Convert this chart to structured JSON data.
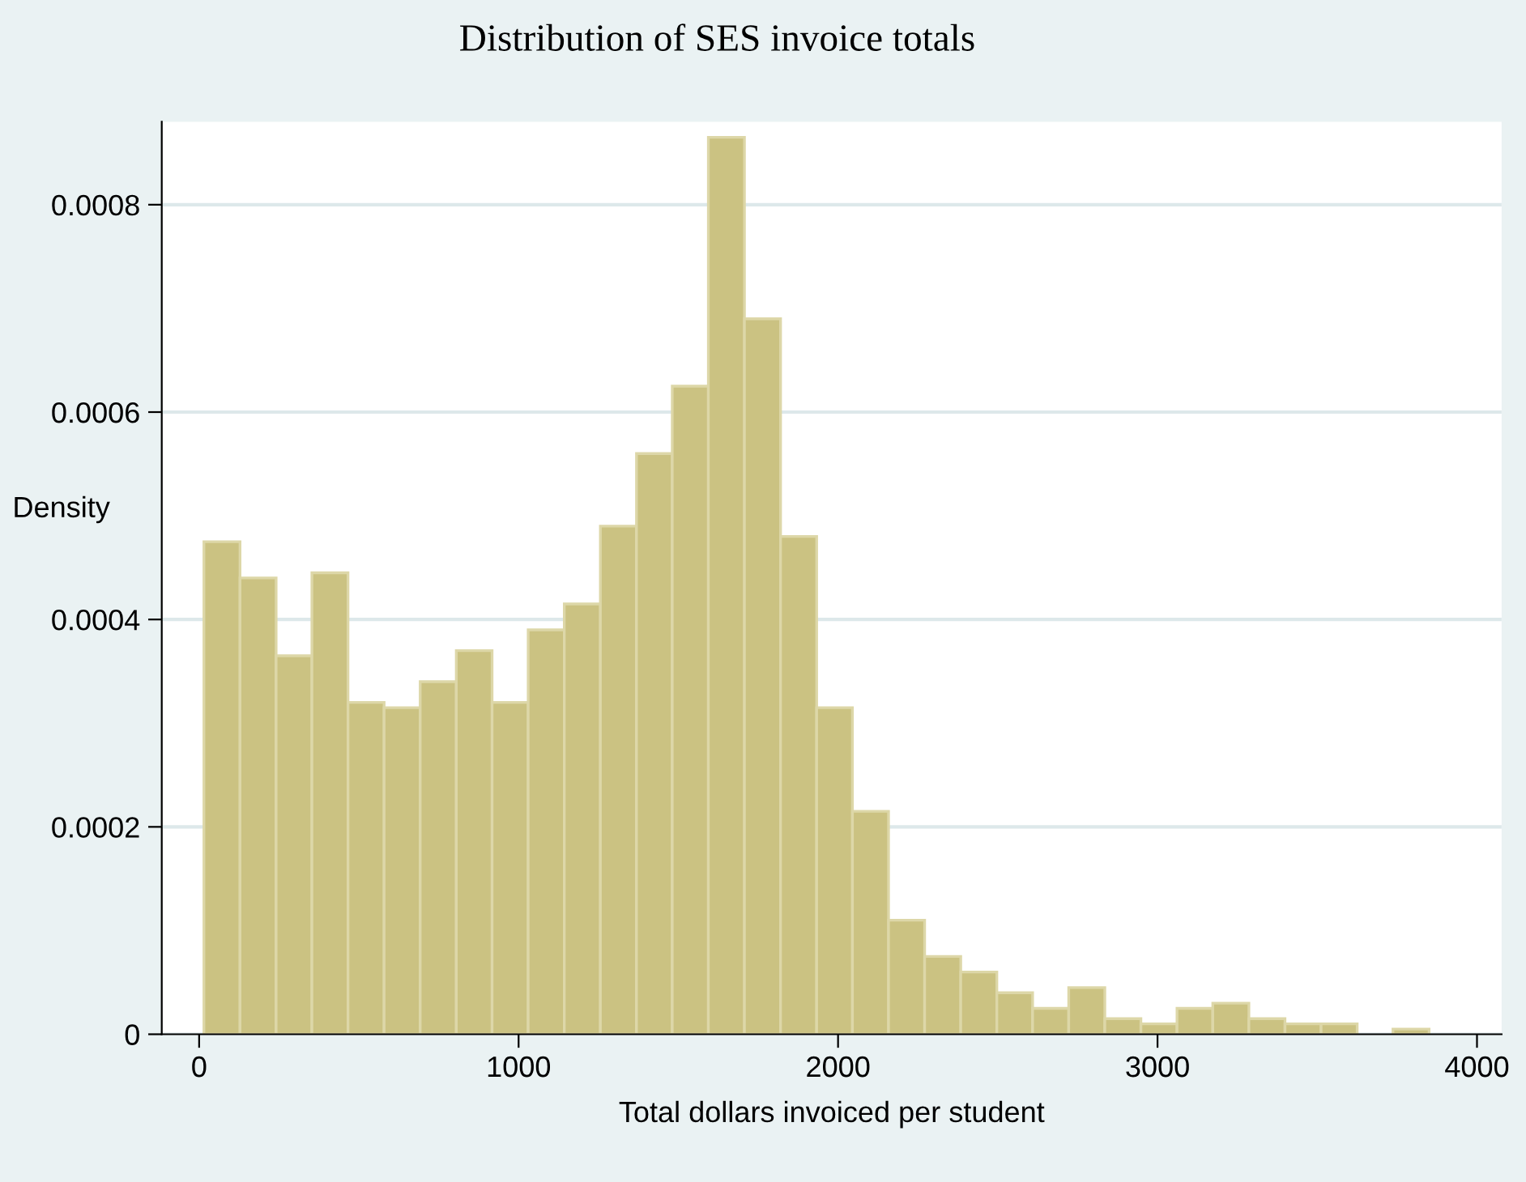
{
  "chart_data": {
    "type": "histogram",
    "title": "Distribution of SES invoice totals",
    "xlabel": "Total dollars invoiced per student",
    "ylabel": "Density",
    "bins": [
      15,
      128,
      241,
      353,
      466,
      579,
      692,
      805,
      917,
      1030,
      1143,
      1256,
      1369,
      1481,
      1594,
      1707,
      1820,
      1933,
      2045,
      2158,
      2271,
      2384,
      2497,
      2609,
      2722,
      2835,
      2948,
      3061,
      3173,
      3286,
      3399,
      3512,
      3625,
      3737,
      3850
    ],
    "values": [
      0.000475,
      0.00044,
      0.000365,
      0.000445,
      0.00032,
      0.000315,
      0.00034,
      0.00037,
      0.00032,
      0.00039,
      0.000415,
      0.00049,
      0.00056,
      0.000625,
      0.000865,
      0.00069,
      0.00048,
      0.000315,
      0.000215,
      0.00011,
      7.5e-05,
      6e-05,
      4e-05,
      2.5e-05,
      4.5e-05,
      1.5e-05,
      1e-05,
      2.5e-05,
      3e-05,
      1.5e-05,
      1e-05,
      1e-05,
      0,
      5e-06
    ],
    "color": "#cbc282",
    "xlim": [
      -117,
      4077
    ],
    "ylim": [
      0,
      0.00088
    ],
    "xticks": [
      0,
      1000,
      2000,
      3000,
      4000
    ],
    "yticks": [
      0,
      0.0002,
      0.0004,
      0.0006,
      0.0008
    ],
    "grid": "y",
    "legend": false
  }
}
